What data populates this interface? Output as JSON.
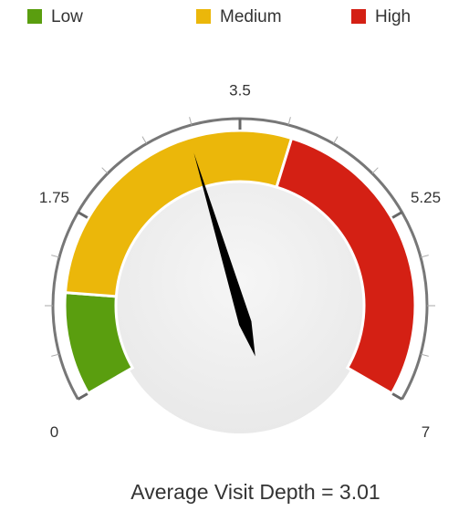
{
  "chart_data": {
    "type": "gauge",
    "title": "Average Visit Depth = 3.01",
    "value": 3.01,
    "ylim": [
      0,
      7
    ],
    "yticks": [
      0,
      1.75,
      3.5,
      5.25,
      7
    ],
    "minor_ticks": [
      0.4375,
      0.875,
      1.3125,
      2.1875,
      2.625,
      3.0625,
      3.9375,
      4.375,
      4.8125,
      5.6875,
      6.125,
      6.5625
    ],
    "bands": [
      {
        "name": "Low",
        "color": "#5a9e0f",
        "from": 0,
        "to": 1
      },
      {
        "name": "Medium",
        "color": "#ebb70a",
        "from": 1,
        "to": 4
      },
      {
        "name": "High",
        "color": "#d42014",
        "from": 4,
        "to": 7
      }
    ],
    "legend": "top"
  }
}
